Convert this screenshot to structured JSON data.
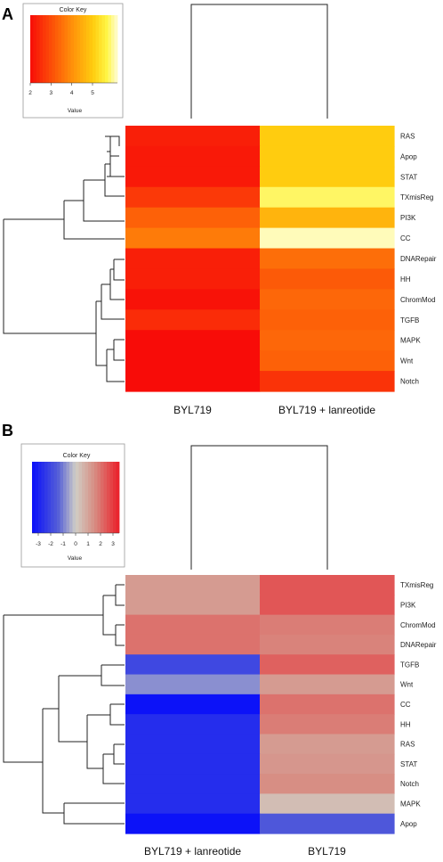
{
  "chart_data": [
    {
      "type": "heatmap",
      "panel_label": "A",
      "color_key": {
        "title": "Color Key",
        "value_label": "Value",
        "ticks": [
          "2",
          "3",
          "4",
          "5"
        ],
        "tick_values": [
          2,
          3,
          4,
          5
        ],
        "range": [
          2,
          6.2
        ],
        "colormap": "heat"
      },
      "columns": [
        "BYL719",
        "BYL719 + lanreotide"
      ],
      "rows": [
        "RAS",
        "Apop",
        "STAT",
        "TXmisReg",
        "PI3K",
        "CC",
        "DNARepair",
        "HH",
        "ChromMod",
        "TGFB",
        "MAPK",
        "Wnt",
        "Notch"
      ],
      "values": [
        [
          2.3,
          5.0
        ],
        [
          2.2,
          5.0
        ],
        [
          2.2,
          5.0
        ],
        [
          2.7,
          5.8
        ],
        [
          3.3,
          4.6
        ],
        [
          3.7,
          6.1
        ],
        [
          2.3,
          3.5
        ],
        [
          2.3,
          3.2
        ],
        [
          2.1,
          3.4
        ],
        [
          2.5,
          3.3
        ],
        [
          2.0,
          3.4
        ],
        [
          2.0,
          3.3
        ],
        [
          2.0,
          2.6
        ]
      ]
    },
    {
      "type": "heatmap",
      "panel_label": "B",
      "color_key": {
        "title": "Color Key",
        "value_label": "Value",
        "ticks": [
          "-3",
          "-2",
          "-1",
          "0",
          "1",
          "2",
          "3"
        ],
        "tick_values": [
          -3,
          -2,
          -1,
          0,
          1,
          2,
          3
        ],
        "range": [
          -3.5,
          3.5
        ],
        "colormap": "blue-white-red"
      },
      "columns": [
        "BYL719 + lanreotide",
        "BYL719"
      ],
      "rows": [
        "TXmisReg",
        "PI3K",
        "ChromMod",
        "DNARepair",
        "TGFB",
        "Wnt",
        "CC",
        "HH",
        "RAS",
        "STAT",
        "Notch",
        "MAPK",
        "Apop"
      ],
      "values": [
        [
          1.2,
          2.5
        ],
        [
          1.2,
          2.5
        ],
        [
          2.0,
          1.8
        ],
        [
          2.0,
          1.7
        ],
        [
          -2.0,
          2.3
        ],
        [
          -0.8,
          1.2
        ],
        [
          -3.4,
          2.0
        ],
        [
          -2.7,
          1.8
        ],
        [
          -2.7,
          1.2
        ],
        [
          -2.7,
          1.3
        ],
        [
          -2.7,
          1.5
        ],
        [
          -2.7,
          0.4
        ],
        [
          -3.4,
          -1.6
        ]
      ]
    }
  ]
}
